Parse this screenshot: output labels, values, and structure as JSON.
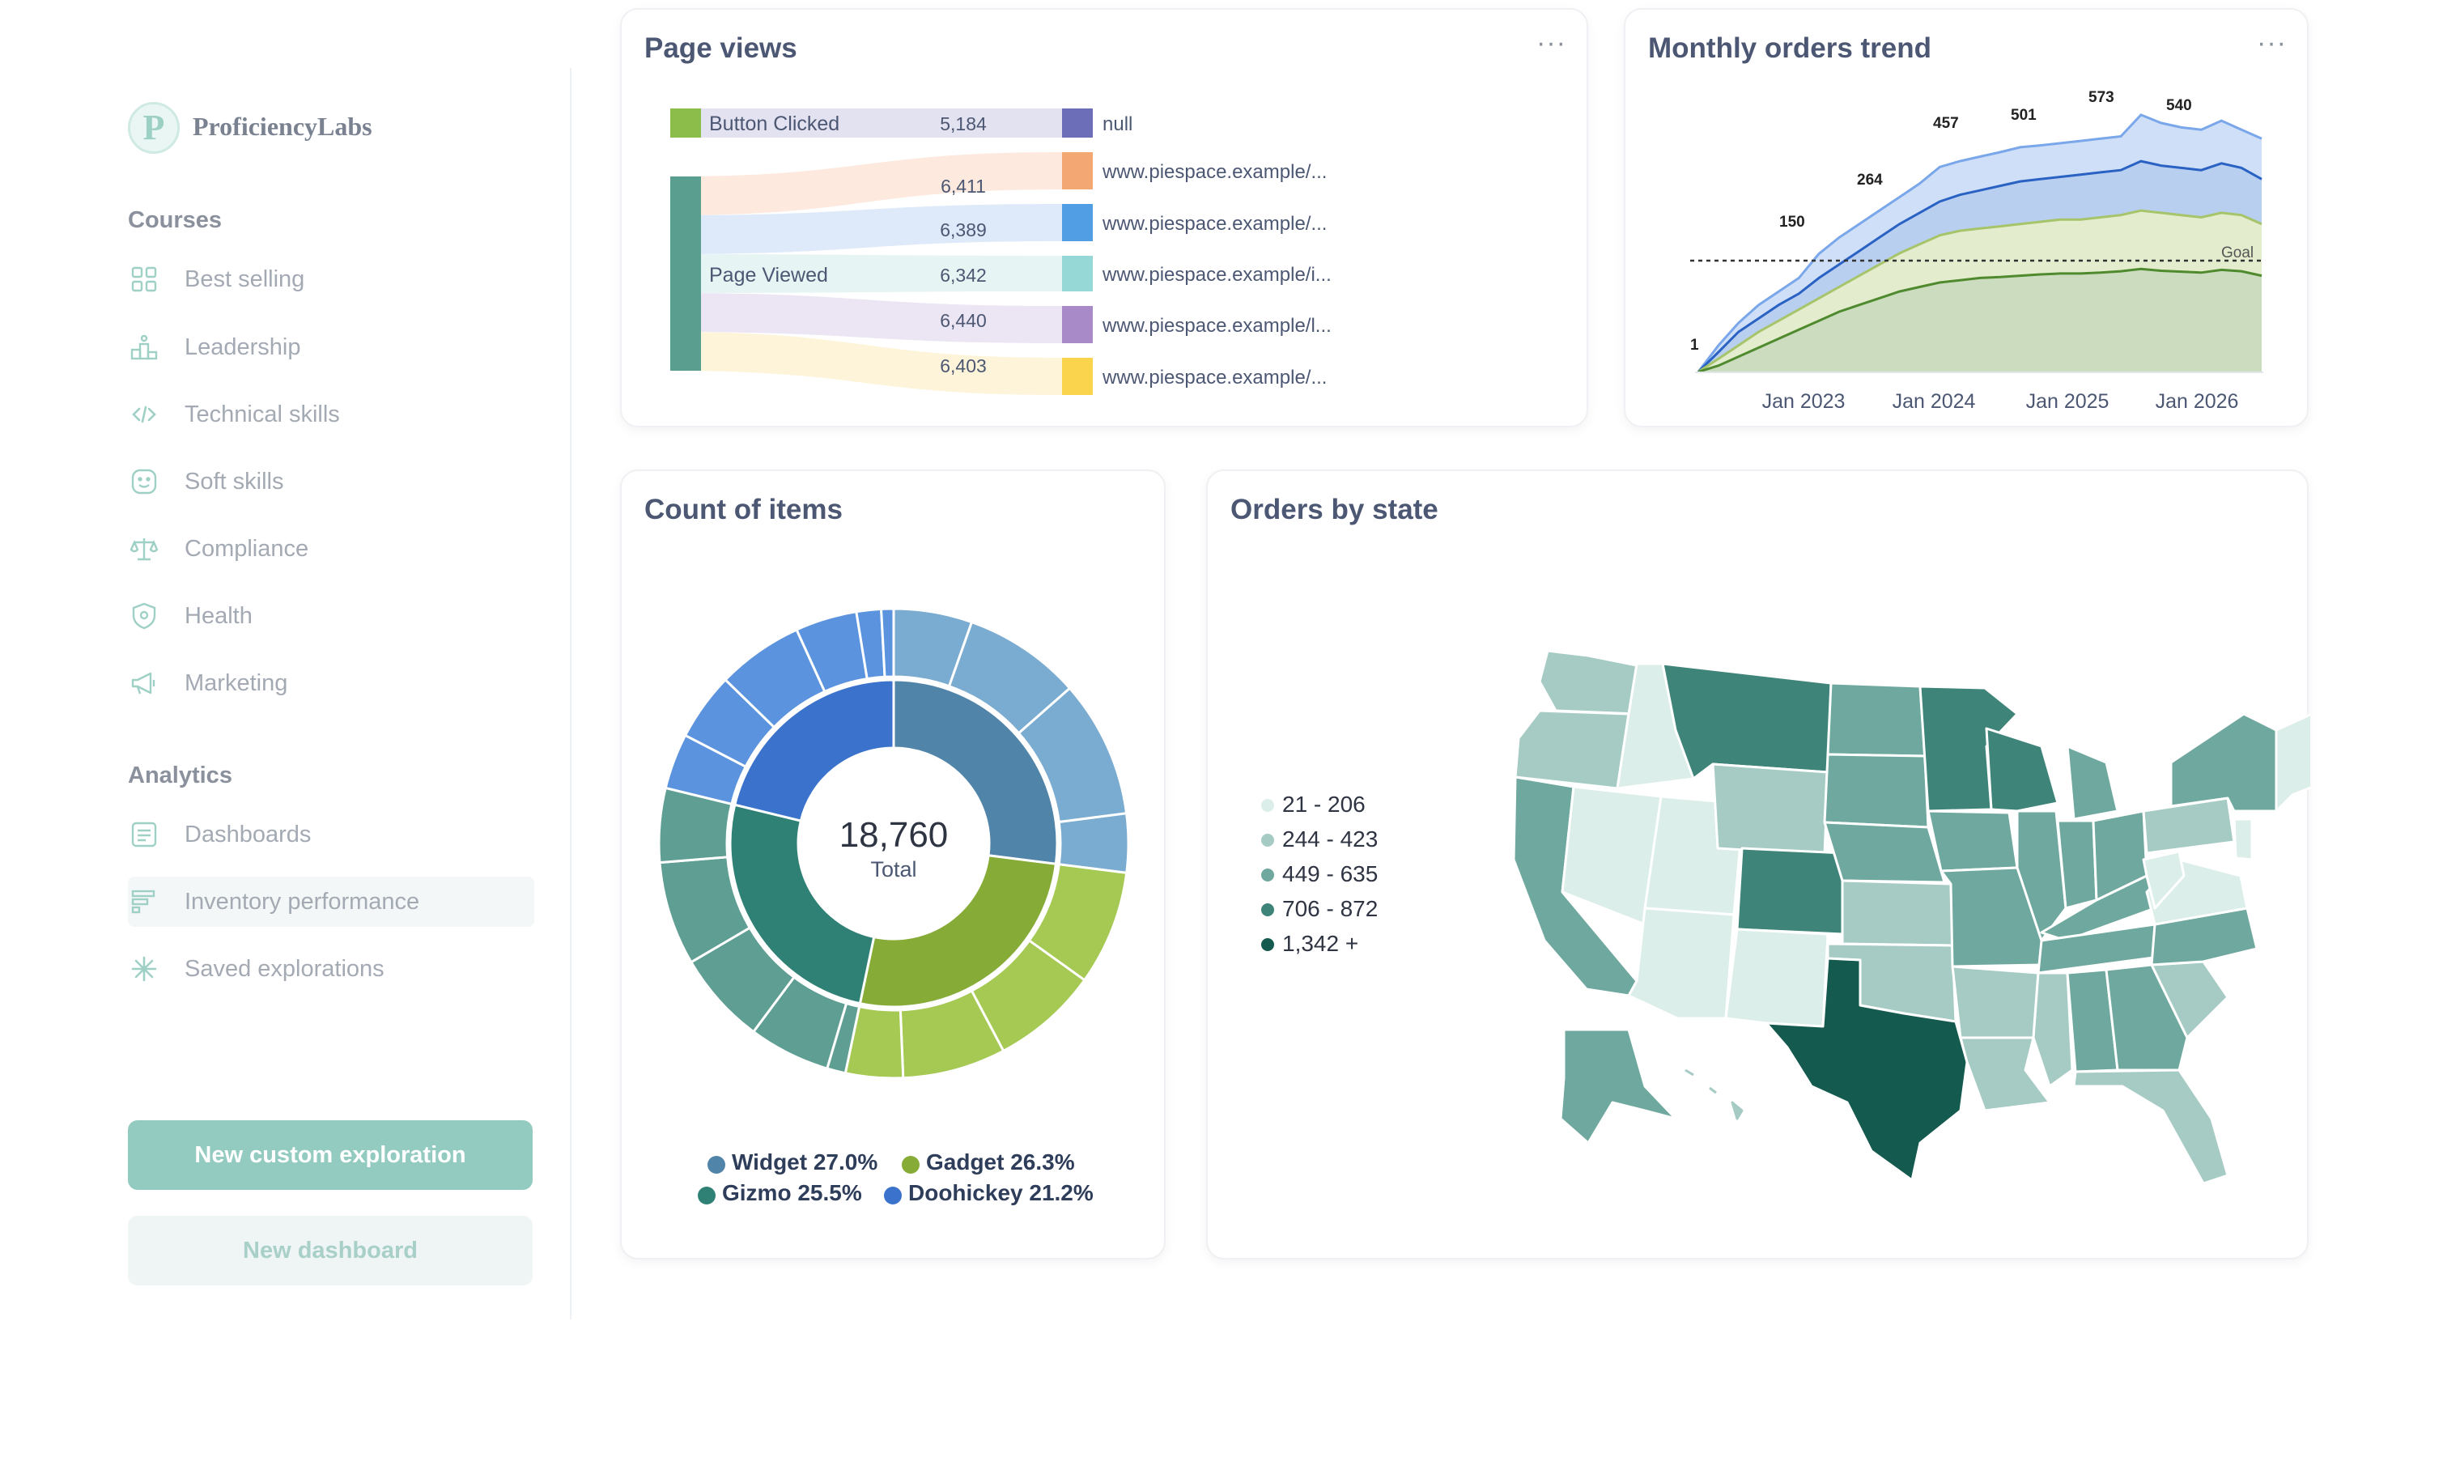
{
  "app": {
    "logo_letter": "P",
    "name": "ProficiencyLabs"
  },
  "sidebar": {
    "courses_heading": "Courses",
    "courses": [
      {
        "label": "Best selling",
        "icon": "grid-icon"
      },
      {
        "label": "Leadership",
        "icon": "podium-icon"
      },
      {
        "label": "Technical skills",
        "icon": "code-icon"
      },
      {
        "label": "Soft skills",
        "icon": "smile-icon"
      },
      {
        "label": "Compliance",
        "icon": "scales-icon"
      },
      {
        "label": "Health",
        "icon": "shield-icon"
      },
      {
        "label": "Marketing",
        "icon": "megaphone-icon"
      }
    ],
    "analytics_heading": "Analytics",
    "analytics": [
      {
        "label": "Dashboards",
        "icon": "dashboard-icon"
      },
      {
        "label": "Inventory performance",
        "icon": "bars-icon"
      },
      {
        "label": "Saved explorations",
        "icon": "sparkle-icon"
      }
    ],
    "active_item": "Inventory performance",
    "primary_button": "New custom exploration",
    "secondary_button": "New dashboard"
  },
  "page_views": {
    "title": "Page views",
    "menu": "···",
    "source_nodes": [
      "Button Clicked",
      "Page Viewed"
    ],
    "flows": [
      {
        "from": "Button Clicked",
        "to": "null",
        "value": "5,184",
        "color": "#6c6fb8"
      },
      {
        "from": "Page Viewed",
        "to": "www.piespace.example/...",
        "value": "6,411",
        "color": "#f3a772"
      },
      {
        "from": "Page Viewed",
        "to": "www.piespace.example/...",
        "value": "6,389",
        "color": "#519ee4"
      },
      {
        "from": "Page Viewed",
        "to": "www.piespace.example/i...",
        "value": "6,342",
        "color": "#95d8d5"
      },
      {
        "from": "Page Viewed",
        "to": "www.piespace.example/l...",
        "value": "6,440",
        "color": "#a88ac8"
      },
      {
        "from": "Page Viewed",
        "to": "www.piespace.example/...",
        "value": "6,403",
        "color": "#f9d44c"
      }
    ]
  },
  "orders_trend": {
    "title": "Monthly orders trend",
    "menu": "···",
    "goal_label": "Goal",
    "x_ticks": [
      "Jan 2023",
      "Jan 2024",
      "Jan 2025",
      "Jan 2026"
    ],
    "annotations": [
      "1",
      "150",
      "264",
      "457",
      "501",
      "573",
      "540"
    ]
  },
  "count_items": {
    "title": "Count of items",
    "total_value": "18,760",
    "total_label": "Total",
    "legend": [
      {
        "label": "Widget 27.0%",
        "color": "#5184a9"
      },
      {
        "label": "Gadget 26.3%",
        "color": "#86ac37"
      },
      {
        "label": "Gizmo 25.5%",
        "color": "#2f8176"
      },
      {
        "label": "Doohickey 21.2%",
        "color": "#3b72cc"
      }
    ]
  },
  "orders_state": {
    "title": "Orders by state",
    "legend": [
      {
        "label": "21 - 206",
        "color": "#dceee9"
      },
      {
        "label": "244 - 423",
        "color": "#a6cbc4"
      },
      {
        "label": "449 - 635",
        "color": "#6fa89e"
      },
      {
        "label": "706 - 872",
        "color": "#3f8479"
      },
      {
        "label": "1,342 +",
        "color": "#155a4f"
      }
    ]
  },
  "chart_data": [
    {
      "type": "sankey",
      "title": "Page views",
      "links": [
        {
          "source": "Button Clicked",
          "target": "null",
          "value": 5184
        },
        {
          "source": "Page Viewed",
          "target": "www.piespace.example/...",
          "value": 6411
        },
        {
          "source": "Page Viewed",
          "target": "www.piespace.example/...",
          "value": 6389
        },
        {
          "source": "Page Viewed",
          "target": "www.piespace.example/i...",
          "value": 6342
        },
        {
          "source": "Page Viewed",
          "target": "www.piespace.example/l...",
          "value": 6440
        },
        {
          "source": "Page Viewed",
          "target": "www.piespace.example/...",
          "value": 6403
        }
      ]
    },
    {
      "type": "area",
      "title": "Monthly orders trend",
      "x_ticks": [
        "Jan 2023",
        "Jan 2024",
        "Jan 2025",
        "Jan 2026"
      ],
      "goal_line": true,
      "annotations": [
        1,
        150,
        264,
        457,
        501,
        573,
        540
      ],
      "series": [
        {
          "values": [
            1,
            60,
            110,
            150,
            180,
            210,
            264,
            300,
            330,
            360,
            390,
            420,
            457,
            470,
            480,
            490,
            501,
            505,
            510,
            515,
            520,
            525,
            573,
            555,
            545,
            540,
            560,
            540,
            520
          ]
        },
        {
          "values": [
            1,
            45,
            90,
            120,
            150,
            175,
            210,
            240,
            270,
            300,
            330,
            355,
            380,
            395,
            405,
            415,
            425,
            430,
            435,
            440,
            445,
            450,
            470,
            460,
            455,
            450,
            465,
            455,
            430
          ]
        },
        {
          "values": [
            1,
            30,
            60,
            90,
            115,
            140,
            165,
            190,
            215,
            240,
            265,
            285,
            305,
            315,
            320,
            325,
            330,
            335,
            340,
            340,
            345,
            350,
            360,
            355,
            350,
            345,
            355,
            350,
            330
          ]
        },
        {
          "values": [
            1,
            15,
            35,
            55,
            75,
            95,
            115,
            135,
            150,
            165,
            180,
            190,
            200,
            205,
            210,
            212,
            215,
            218,
            220,
            220,
            222,
            225,
            230,
            226,
            224,
            222,
            228,
            225,
            215
          ]
        }
      ]
    },
    {
      "type": "pie",
      "title": "Count of items",
      "total": 18760,
      "slices": [
        {
          "name": "Widget",
          "percent": 27.0
        },
        {
          "name": "Gadget",
          "percent": 26.3
        },
        {
          "name": "Gizmo",
          "percent": 25.5
        },
        {
          "name": "Doohickey",
          "percent": 21.2
        }
      ]
    }
  ]
}
